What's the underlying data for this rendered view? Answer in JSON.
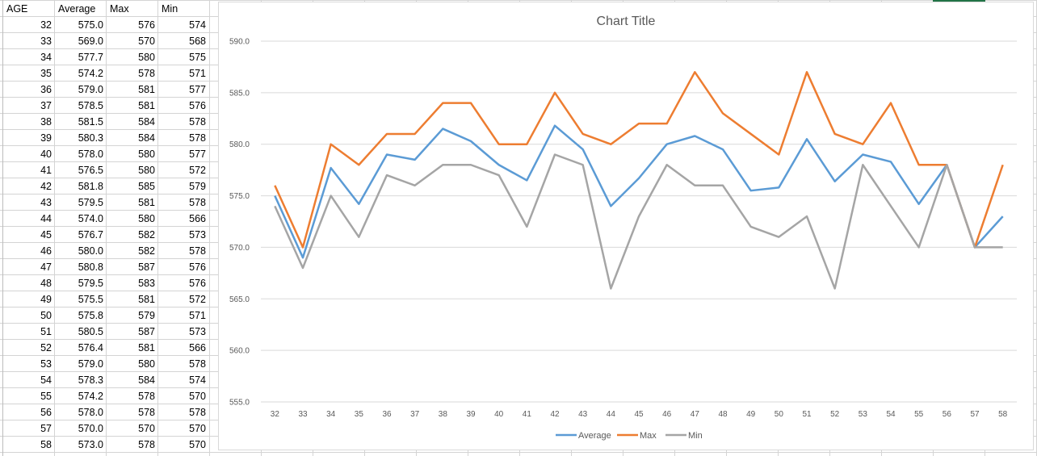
{
  "table": {
    "headers": [
      "AGE",
      "Average",
      "Max",
      "Min"
    ],
    "rows": [
      [
        "32",
        "575.0",
        "576",
        "574"
      ],
      [
        "33",
        "569.0",
        "570",
        "568"
      ],
      [
        "34",
        "577.7",
        "580",
        "575"
      ],
      [
        "35",
        "574.2",
        "578",
        "571"
      ],
      [
        "36",
        "579.0",
        "581",
        "577"
      ],
      [
        "37",
        "578.5",
        "581",
        "576"
      ],
      [
        "38",
        "581.5",
        "584",
        "578"
      ],
      [
        "39",
        "580.3",
        "584",
        "578"
      ],
      [
        "40",
        "578.0",
        "580",
        "577"
      ],
      [
        "41",
        "576.5",
        "580",
        "572"
      ],
      [
        "42",
        "581.8",
        "585",
        "579"
      ],
      [
        "43",
        "579.5",
        "581",
        "578"
      ],
      [
        "44",
        "574.0",
        "580",
        "566"
      ],
      [
        "45",
        "576.7",
        "582",
        "573"
      ],
      [
        "46",
        "580.0",
        "582",
        "578"
      ],
      [
        "47",
        "580.8",
        "587",
        "576"
      ],
      [
        "48",
        "579.5",
        "583",
        "576"
      ],
      [
        "49",
        "575.5",
        "581",
        "572"
      ],
      [
        "50",
        "575.8",
        "579",
        "571"
      ],
      [
        "51",
        "580.5",
        "587",
        "573"
      ],
      [
        "52",
        "576.4",
        "581",
        "566"
      ],
      [
        "53",
        "579.0",
        "580",
        "578"
      ],
      [
        "54",
        "578.3",
        "584",
        "574"
      ],
      [
        "55",
        "574.2",
        "578",
        "570"
      ],
      [
        "56",
        "578.0",
        "578",
        "578"
      ],
      [
        "57",
        "570.0",
        "570",
        "570"
      ],
      [
        "58",
        "573.0",
        "578",
        "570"
      ]
    ]
  },
  "chart_data": {
    "type": "line",
    "title": "Chart Title",
    "xlabel": "",
    "ylabel": "",
    "categories": [
      "32",
      "33",
      "34",
      "35",
      "36",
      "37",
      "38",
      "39",
      "40",
      "41",
      "42",
      "43",
      "44",
      "45",
      "46",
      "47",
      "48",
      "49",
      "50",
      "51",
      "52",
      "53",
      "54",
      "55",
      "56",
      "57",
      "58"
    ],
    "ylim": [
      555,
      590
    ],
    "yticks": [
      "555.0",
      "560.0",
      "565.0",
      "570.0",
      "575.0",
      "580.0",
      "585.0",
      "590.0"
    ],
    "grid": true,
    "legend": "bottom",
    "series": [
      {
        "name": "Average",
        "color": "#5b9bd5",
        "values": [
          575.0,
          569.0,
          577.7,
          574.2,
          579.0,
          578.5,
          581.5,
          580.3,
          578.0,
          576.5,
          581.8,
          579.5,
          574.0,
          576.7,
          580.0,
          580.8,
          579.5,
          575.5,
          575.8,
          580.5,
          576.4,
          579.0,
          578.3,
          574.2,
          578.0,
          570.0,
          573.0
        ]
      },
      {
        "name": "Max",
        "color": "#ed7d31",
        "values": [
          576,
          570,
          580,
          578,
          581,
          581,
          584,
          584,
          580,
          580,
          585,
          581,
          580,
          582,
          582,
          587,
          583,
          581,
          579,
          587,
          581,
          580,
          584,
          578,
          578,
          570,
          578
        ]
      },
      {
        "name": "Min",
        "color": "#a5a5a5",
        "values": [
          574,
          568,
          575,
          571,
          577,
          576,
          578,
          578,
          577,
          572,
          579,
          578,
          566,
          573,
          578,
          576,
          576,
          572,
          571,
          573,
          566,
          578,
          574,
          570,
          578,
          570,
          570
        ]
      }
    ]
  }
}
